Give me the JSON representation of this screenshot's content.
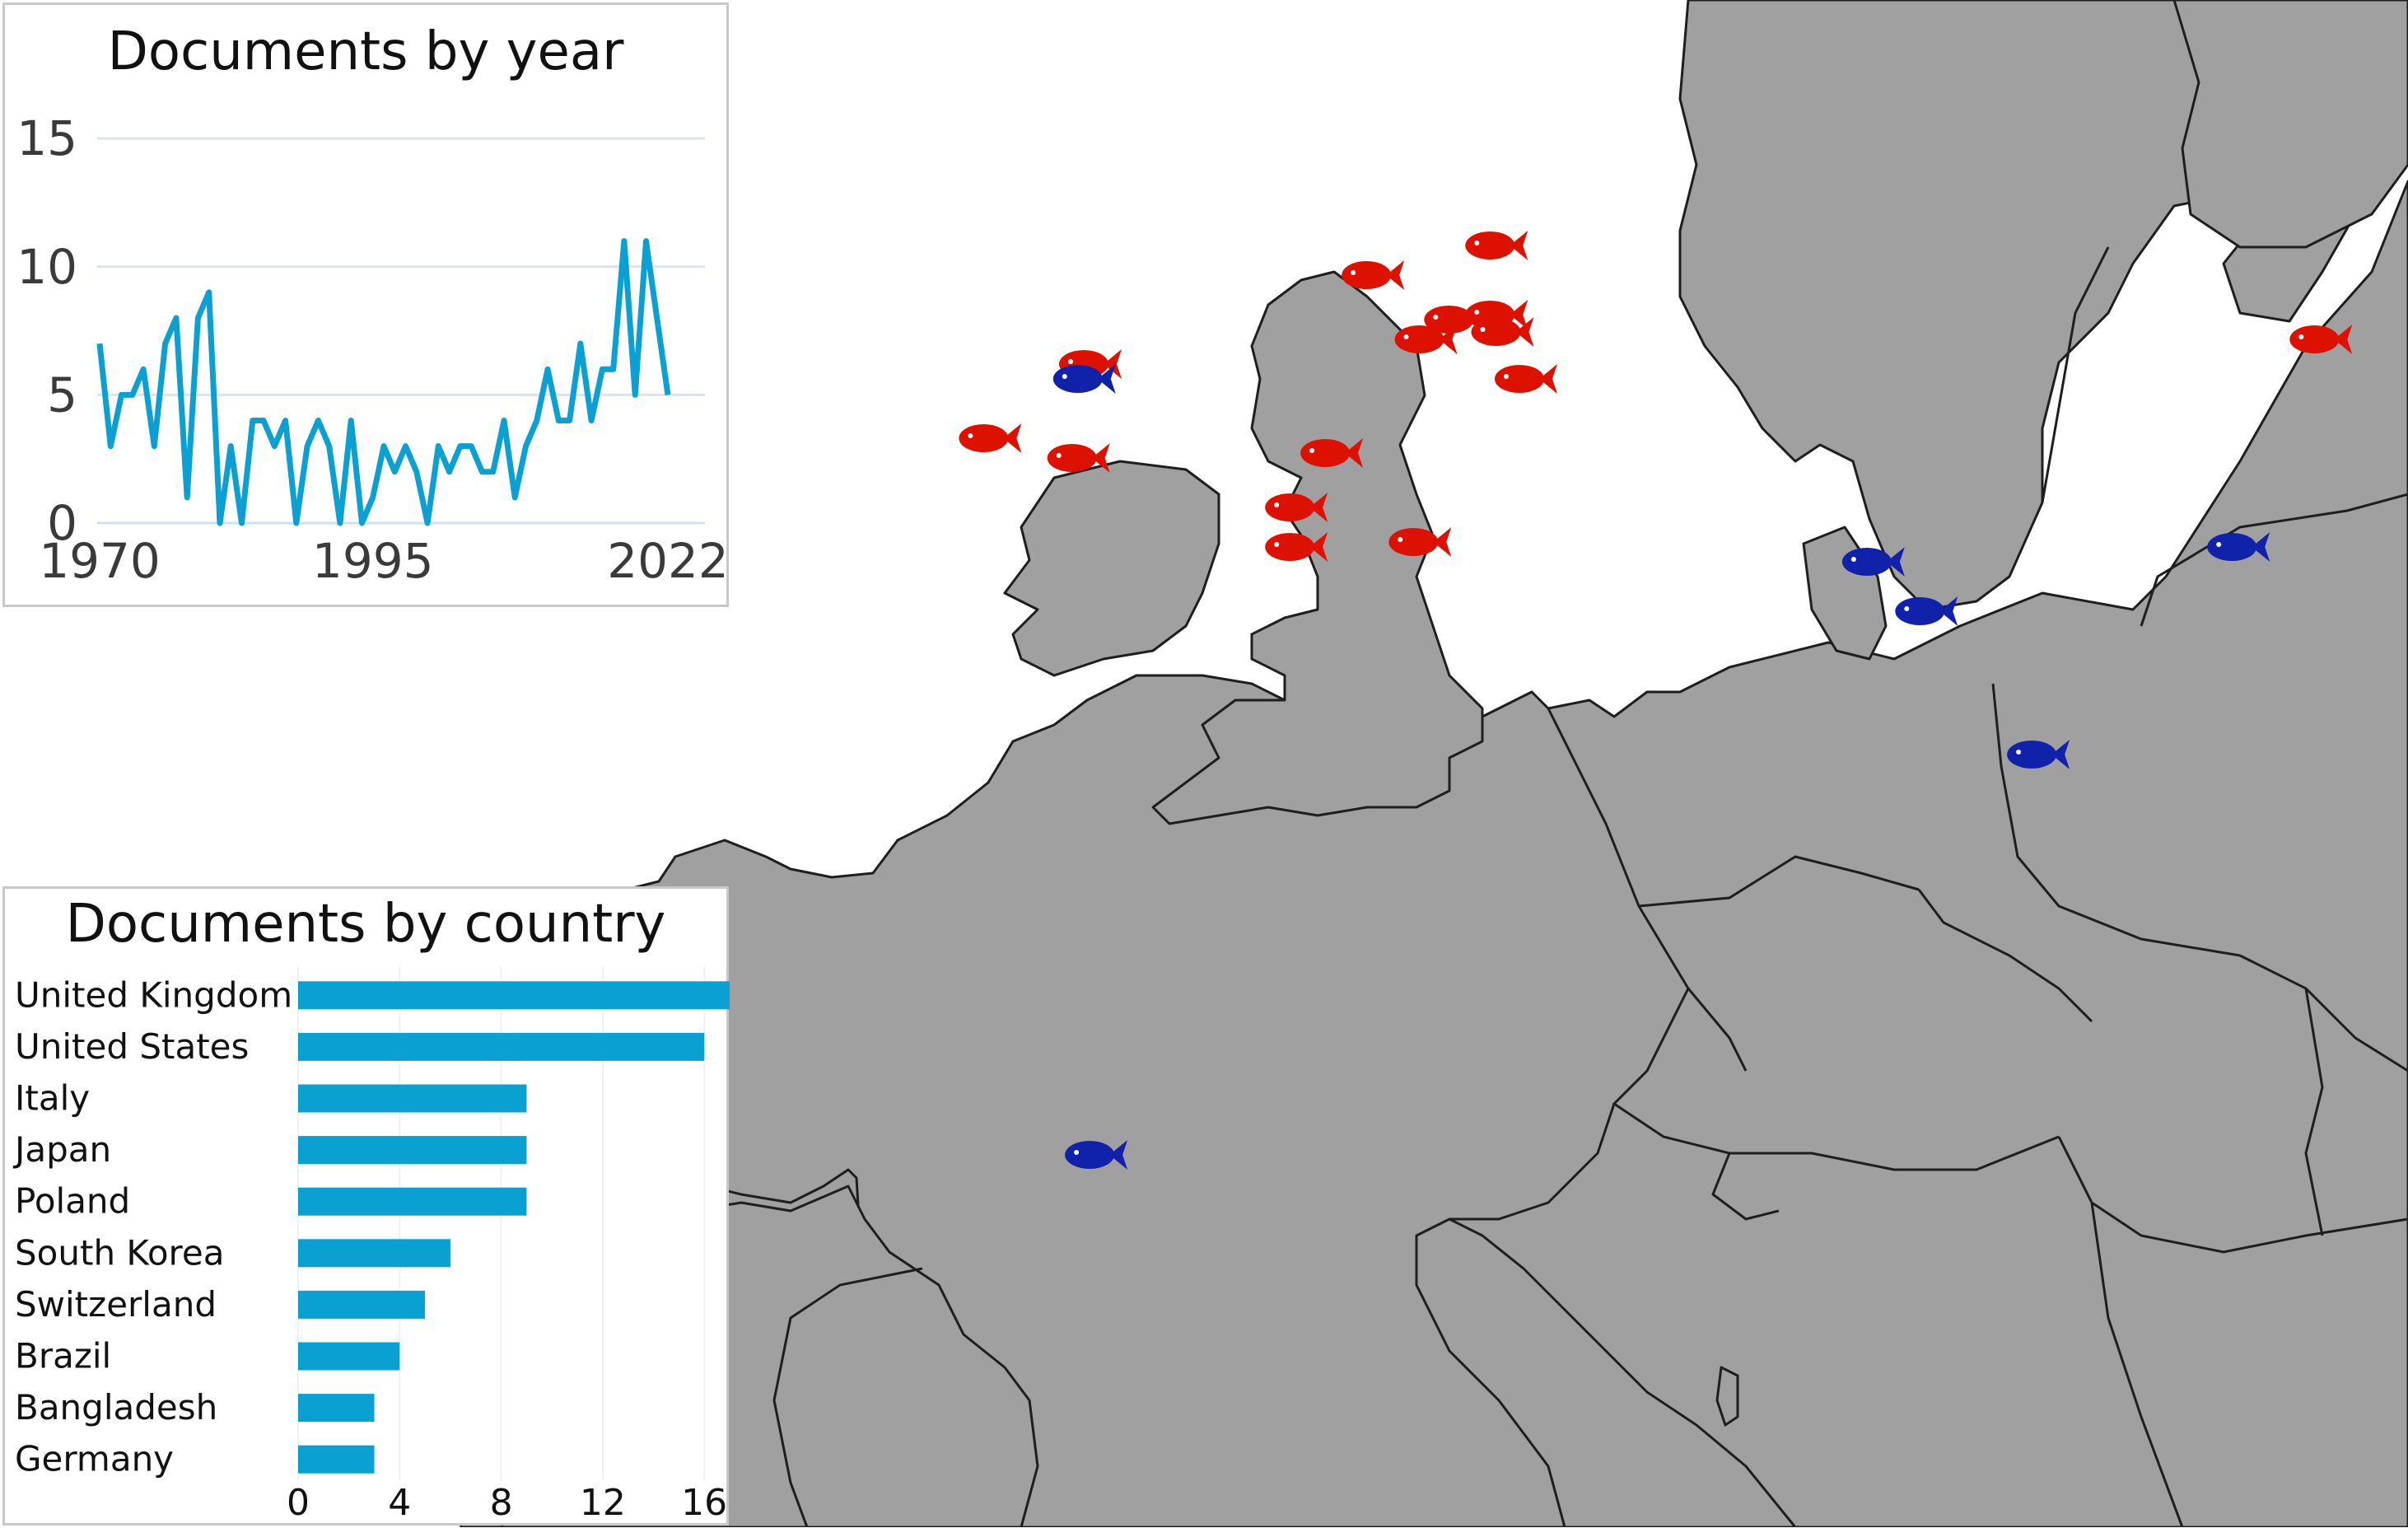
{
  "colors": {
    "land": "#a0a0a0",
    "sea": "#ffffff",
    "border": "#1e1e1e",
    "fish_red": "#dd1100",
    "fish_blue": "#1122aa",
    "chart_blue": "#0aa0d2",
    "grid": "#dde3ec",
    "text": "#3a3a3a"
  },
  "map": {
    "fish": [
      {
        "lon": -1.8,
        "lat": 57.2,
        "color": "red"
      },
      {
        "lon": -3.9,
        "lat": 56.6,
        "color": "red"
      },
      {
        "lon": -2.5,
        "lat": 55.7,
        "color": "red"
      },
      {
        "lon": -1.8,
        "lat": 55.8,
        "color": "red"
      },
      {
        "lon": -1.7,
        "lat": 55.45,
        "color": "red"
      },
      {
        "lon": -3.0,
        "lat": 55.3,
        "color": "red"
      },
      {
        "lon": -1.3,
        "lat": 54.5,
        "color": "red"
      },
      {
        "lon": -8.7,
        "lat": 54.8,
        "color": "red"
      },
      {
        "lon": -8.8,
        "lat": 54.5,
        "color": "blue"
      },
      {
        "lon": -10.4,
        "lat": 53.3,
        "color": "red"
      },
      {
        "lon": -8.9,
        "lat": 52.9,
        "color": "red"
      },
      {
        "lon": -4.6,
        "lat": 53.0,
        "color": "red"
      },
      {
        "lon": -5.2,
        "lat": 51.9,
        "color": "red"
      },
      {
        "lon": -5.2,
        "lat": 51.1,
        "color": "red"
      },
      {
        "lon": -3.1,
        "lat": 51.2,
        "color": "red"
      },
      {
        "lon": 4.6,
        "lat": 50.8,
        "color": "blue"
      },
      {
        "lon": 5.5,
        "lat": 49.8,
        "color": "blue"
      },
      {
        "lon": 10.8,
        "lat": 51.1,
        "color": "blue"
      },
      {
        "lon": 12.2,
        "lat": 55.3,
        "color": "red"
      },
      {
        "lon": 15.7,
        "lat": 54.4,
        "color": "red"
      },
      {
        "lon": 16.1,
        "lat": 54.5,
        "color": "red"
      },
      {
        "lon": 16.5,
        "lat": 54.6,
        "color": "red"
      },
      {
        "lon": 17.5,
        "lat": 55.4,
        "color": "red"
      },
      {
        "lon": 18.5,
        "lat": 50.0,
        "color": "red"
      },
      {
        "lon": 16.0,
        "lat": 47.7,
        "color": "blue"
      },
      {
        "lon": 7.4,
        "lat": 46.9,
        "color": "blue"
      },
      {
        "lon": -8.6,
        "lat": 38.8,
        "color": "blue"
      },
      {
        "lon": 15.5,
        "lat": 61.0,
        "color": "red"
      },
      {
        "lon": 16.4,
        "lat": 61.0,
        "color": "red"
      },
      {
        "lon": 25.5,
        "lat": 65.5,
        "color": "red"
      }
    ]
  },
  "year_chart": {
    "title": "Documents by year",
    "chart_data": {
      "type": "line",
      "title": "Documents by year",
      "x": [
        1970,
        1971,
        1972,
        1973,
        1974,
        1975,
        1976,
        1977,
        1978,
        1979,
        1980,
        1981,
        1982,
        1983,
        1984,
        1985,
        1986,
        1987,
        1988,
        1989,
        1990,
        1991,
        1992,
        1993,
        1994,
        1995,
        1996,
        1997,
        1998,
        1999,
        2000,
        2001,
        2002,
        2003,
        2004,
        2005,
        2006,
        2007,
        2008,
        2009,
        2010,
        2011,
        2012,
        2013,
        2014,
        2015,
        2016,
        2017,
        2018,
        2019,
        2020,
        2021,
        2022
      ],
      "values": [
        7,
        3,
        5,
        5,
        6,
        3,
        7,
        8,
        1,
        8,
        9,
        0,
        3,
        0,
        4,
        4,
        3,
        4,
        0,
        3,
        4,
        3,
        0,
        4,
        0,
        1,
        3,
        2,
        3,
        2,
        0,
        3,
        2,
        3,
        3,
        2,
        2,
        4,
        1,
        3,
        4,
        6,
        4,
        4,
        7,
        4,
        6,
        6,
        11,
        5,
        11,
        8,
        5
      ],
      "ylim": [
        0,
        16
      ],
      "yticks": [
        "0",
        "5",
        "10",
        "15"
      ],
      "xticks": [
        "1970",
        "1995",
        "2022"
      ],
      "grid": true
    }
  },
  "country_chart": {
    "title": "Documents by country",
    "chart_data": {
      "type": "bar",
      "title": "Documents by country",
      "categories": [
        "United Kingdom",
        "United States",
        "Italy",
        "Japan",
        "Poland",
        "South Korea",
        "Switzerland",
        "Brazil",
        "Bangladesh",
        "Germany"
      ],
      "values": [
        17,
        16,
        9,
        9,
        9,
        6,
        5,
        4,
        3,
        3
      ],
      "xlim": [
        0,
        17
      ],
      "xticks": [
        "0",
        "4",
        "8",
        "12",
        "16"
      ],
      "grid": true
    }
  }
}
